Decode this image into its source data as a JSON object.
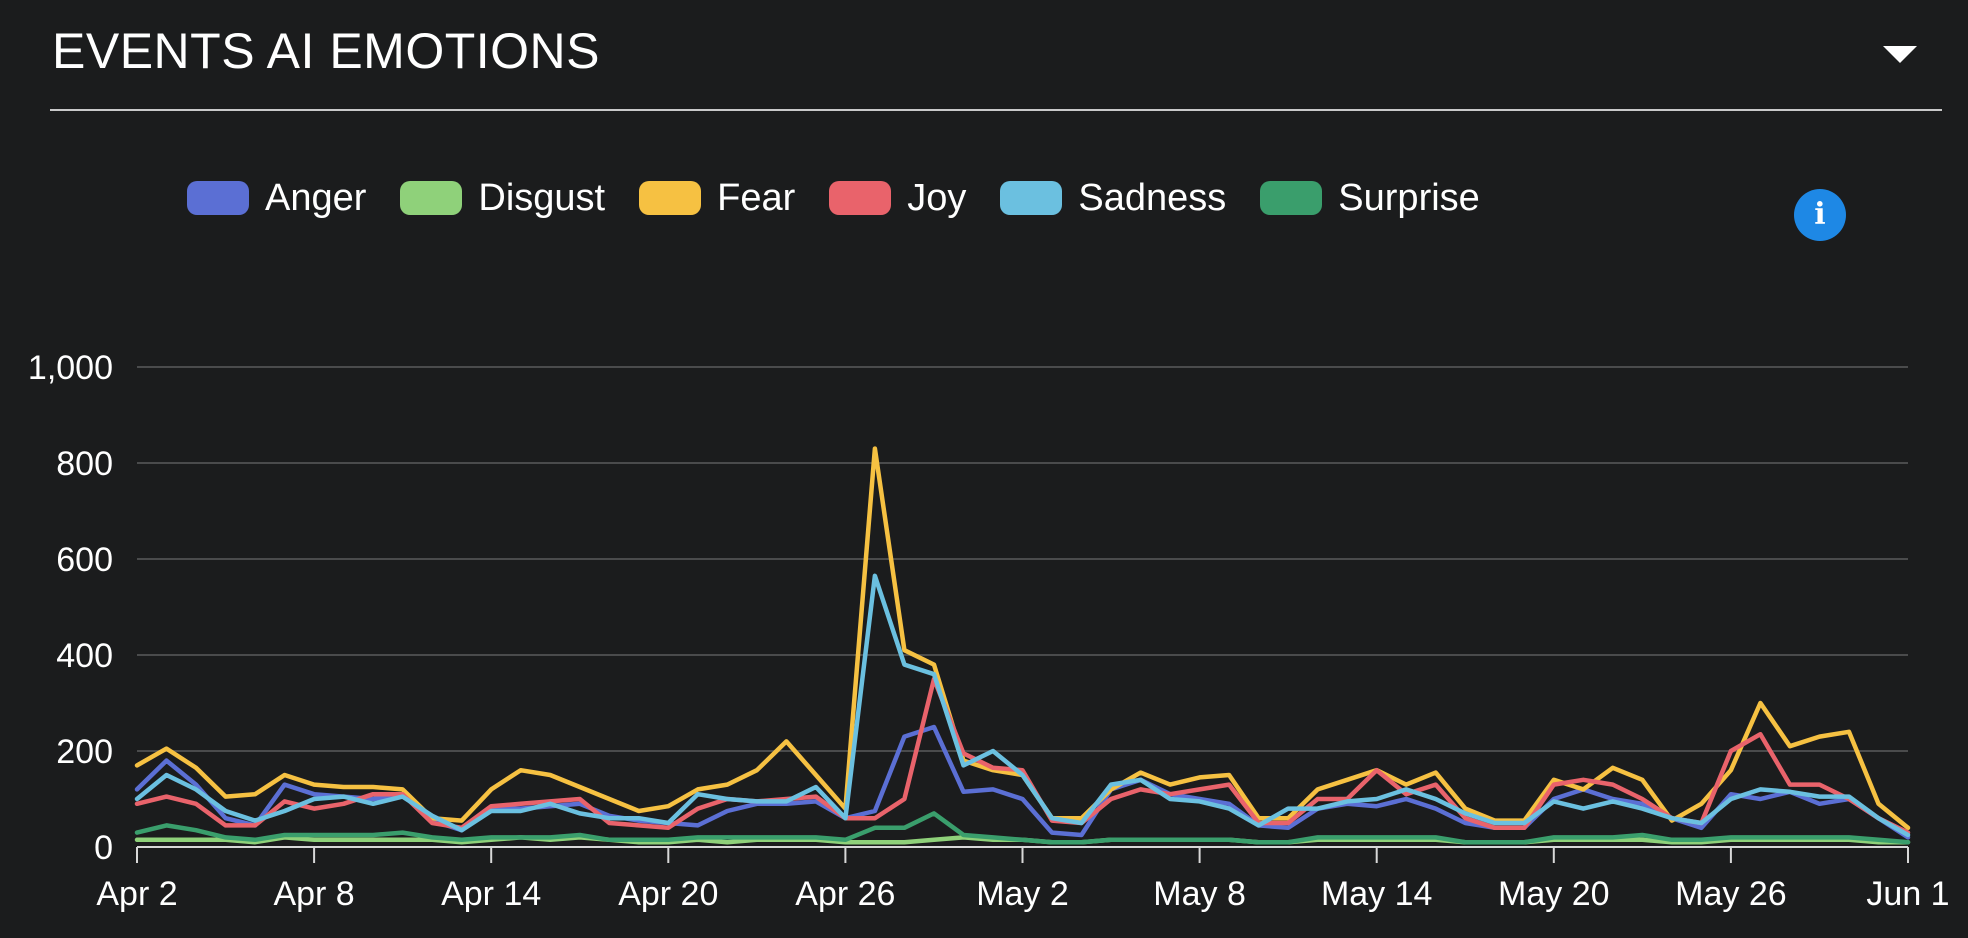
{
  "header": {
    "title": "EVENTS AI EMOTIONS"
  },
  "chart_data": {
    "type": "line",
    "title": "EVENTS AI EMOTIONS",
    "xlabel": "",
    "ylabel": "",
    "ylim": [
      0,
      1000
    ],
    "y_ticks": [
      "0",
      "200",
      "400",
      "600",
      "800",
      "1,000"
    ],
    "y_tick_values": [
      0,
      200,
      400,
      600,
      800,
      1000
    ],
    "x_ticks": [
      "Apr 2",
      "Apr 8",
      "Apr 14",
      "Apr 20",
      "Apr 26",
      "May 2",
      "May 8",
      "May 14",
      "May 20",
      "May 26",
      "Jun 1"
    ],
    "x": [
      "Apr 2",
      "Apr 3",
      "Apr 4",
      "Apr 5",
      "Apr 6",
      "Apr 7",
      "Apr 8",
      "Apr 9",
      "Apr 10",
      "Apr 11",
      "Apr 12",
      "Apr 13",
      "Apr 14",
      "Apr 15",
      "Apr 16",
      "Apr 17",
      "Apr 18",
      "Apr 19",
      "Apr 20",
      "Apr 21",
      "Apr 22",
      "Apr 23",
      "Apr 24",
      "Apr 25",
      "Apr 26",
      "Apr 27",
      "Apr 28",
      "Apr 29",
      "Apr 30",
      "May 1",
      "May 2",
      "May 3",
      "May 4",
      "May 5",
      "May 6",
      "May 7",
      "May 8",
      "May 9",
      "May 10",
      "May 11",
      "May 12",
      "May 13",
      "May 14",
      "May 15",
      "May 16",
      "May 17",
      "May 18",
      "May 19",
      "May 20",
      "May 21",
      "May 22",
      "May 23",
      "May 24",
      "May 25",
      "May 26",
      "May 27",
      "May 28",
      "May 29",
      "May 30",
      "May 31",
      "Jun 1"
    ],
    "grid": true,
    "legend_position": "top-left",
    "series": [
      {
        "name": "Anger",
        "color": "#5b6fd4",
        "values": [
          120,
          180,
          130,
          60,
          45,
          130,
          110,
          105,
          100,
          110,
          55,
          35,
          80,
          80,
          85,
          90,
          65,
          55,
          50,
          45,
          75,
          90,
          90,
          95,
          60,
          75,
          230,
          250,
          115,
          120,
          100,
          30,
          25,
          120,
          140,
          110,
          100,
          90,
          45,
          40,
          80,
          90,
          85,
          100,
          80,
          50,
          40,
          40,
          100,
          120,
          100,
          90,
          60,
          40,
          110,
          100,
          115,
          90,
          100,
          60,
          20
        ]
      },
      {
        "name": "Disgust",
        "color": "#8fd17a",
        "values": [
          15,
          15,
          15,
          15,
          10,
          20,
          15,
          15,
          15,
          15,
          15,
          10,
          15,
          20,
          15,
          20,
          15,
          10,
          10,
          15,
          10,
          15,
          15,
          15,
          10,
          10,
          10,
          15,
          20,
          15,
          15,
          10,
          10,
          15,
          15,
          15,
          15,
          15,
          10,
          10,
          15,
          15,
          15,
          15,
          15,
          10,
          10,
          10,
          15,
          15,
          15,
          15,
          10,
          10,
          15,
          15,
          15,
          15,
          15,
          10,
          10
        ]
      },
      {
        "name": "Fear",
        "color": "#f6c142",
        "values": [
          170,
          205,
          165,
          105,
          110,
          150,
          130,
          125,
          125,
          120,
          60,
          55,
          120,
          160,
          150,
          125,
          100,
          75,
          85,
          120,
          130,
          160,
          220,
          150,
          80,
          830,
          410,
          380,
          180,
          160,
          150,
          60,
          60,
          120,
          155,
          130,
          145,
          150,
          60,
          60,
          120,
          140,
          160,
          130,
          155,
          80,
          55,
          55,
          140,
          120,
          165,
          140,
          55,
          90,
          160,
          300,
          210,
          230,
          240,
          90,
          40
        ]
      },
      {
        "name": "Joy",
        "color": "#e9636b",
        "values": [
          90,
          105,
          90,
          45,
          45,
          95,
          80,
          90,
          110,
          110,
          50,
          40,
          85,
          90,
          95,
          100,
          50,
          45,
          40,
          80,
          100,
          95,
          100,
          105,
          60,
          60,
          100,
          350,
          195,
          165,
          160,
          55,
          50,
          100,
          120,
          110,
          120,
          130,
          50,
          50,
          100,
          100,
          160,
          110,
          130,
          60,
          40,
          40,
          130,
          140,
          130,
          100,
          60,
          50,
          200,
          235,
          130,
          130,
          100,
          60,
          30
        ]
      },
      {
        "name": "Sadness",
        "color": "#6bc0e0",
        "values": [
          100,
          150,
          120,
          75,
          55,
          75,
          100,
          105,
          90,
          105,
          65,
          35,
          75,
          75,
          90,
          70,
          60,
          60,
          50,
          110,
          100,
          95,
          95,
          125,
          60,
          565,
          380,
          360,
          170,
          200,
          150,
          60,
          50,
          130,
          140,
          100,
          95,
          80,
          45,
          80,
          80,
          95,
          100,
          120,
          100,
          70,
          50,
          50,
          95,
          80,
          95,
          80,
          60,
          50,
          100,
          120,
          115,
          105,
          105,
          60,
          25
        ]
      },
      {
        "name": "Surprise",
        "color": "#3a9e6c",
        "values": [
          30,
          45,
          35,
          20,
          15,
          25,
          25,
          25,
          25,
          30,
          20,
          15,
          20,
          20,
          20,
          25,
          15,
          15,
          15,
          20,
          20,
          20,
          20,
          20,
          15,
          40,
          40,
          70,
          25,
          20,
          15,
          10,
          10,
          15,
          15,
          15,
          15,
          15,
          10,
          10,
          20,
          20,
          20,
          20,
          20,
          10,
          10,
          10,
          20,
          20,
          20,
          25,
          15,
          15,
          20,
          20,
          20,
          20,
          20,
          15,
          10
        ]
      }
    ]
  },
  "icons": {
    "dropdown": "caret-down-icon",
    "info": "info-icon"
  }
}
